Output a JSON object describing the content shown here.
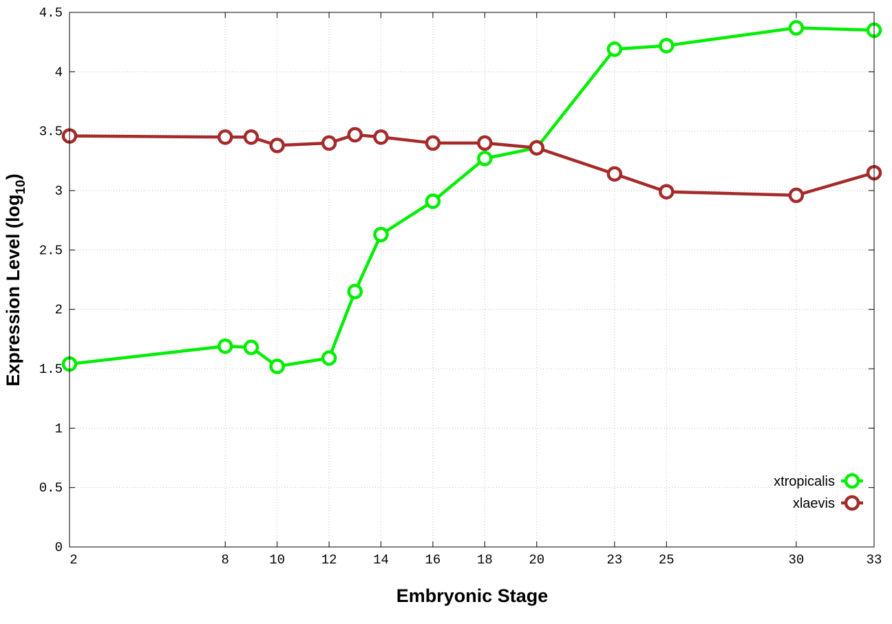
{
  "chart_data": {
    "type": "line",
    "title": "",
    "xlabel": "Embryonic Stage",
    "ylabel": "Expression Level (log",
    "ylabel_sub": "10",
    "ylabel_end": ")",
    "xlim": [
      2,
      33
    ],
    "ylim": [
      0,
      4.5
    ],
    "xticks": [
      2,
      8,
      10,
      12,
      14,
      16,
      18,
      20,
      23,
      25,
      30,
      33
    ],
    "yticks": [
      0,
      0.5,
      1,
      1.5,
      2,
      2.5,
      3,
      3.5,
      4,
      4.5
    ],
    "ytick_labels": [
      "0",
      "0.5",
      "1",
      "1.5",
      "2",
      "2.5",
      "3",
      "3.5",
      "4",
      "4.5"
    ],
    "grid": true,
    "legend_position": "bottom-right",
    "x": [
      2,
      8,
      9,
      10,
      12,
      13,
      14,
      16,
      18,
      20,
      23,
      25,
      30,
      33
    ],
    "series": [
      {
        "name": "xtropicalis",
        "color": "#00ee00",
        "values": [
          1.54,
          1.69,
          1.68,
          1.52,
          1.59,
          2.15,
          2.63,
          2.91,
          3.27,
          3.36,
          4.19,
          4.22,
          4.37,
          4.35
        ]
      },
      {
        "name": "xlaevis",
        "color": "#a52a2a",
        "values": [
          3.46,
          3.45,
          3.45,
          3.38,
          3.4,
          3.47,
          3.45,
          3.4,
          3.4,
          3.36,
          3.14,
          2.99,
          2.96,
          3.15
        ]
      }
    ]
  }
}
